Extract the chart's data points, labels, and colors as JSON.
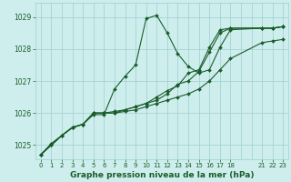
{
  "title": "Graphe pression niveau de la mer (hPa)",
  "bg_color": "#ceeeed",
  "grid_color": "#9ecece",
  "line_color": "#1a5c2a",
  "xlim": [
    -0.5,
    23.5
  ],
  "ylim": [
    1024.55,
    1029.45
  ],
  "yticks": [
    1025,
    1026,
    1027,
    1028,
    1029
  ],
  "xticks": [
    0,
    1,
    2,
    3,
    4,
    5,
    6,
    7,
    8,
    9,
    10,
    11,
    12,
    13,
    14,
    15,
    16,
    17,
    18,
    21,
    22,
    23
  ],
  "series": [
    {
      "x": [
        0,
        1,
        2,
        3,
        4,
        5,
        6,
        7,
        8,
        9,
        10,
        11,
        12,
        13,
        14,
        15,
        16,
        17,
        18,
        21,
        22,
        23
      ],
      "y": [
        1024.7,
        1025.0,
        1025.3,
        1025.55,
        1025.65,
        1025.95,
        1025.95,
        1026.75,
        1027.15,
        1027.5,
        1028.95,
        1029.05,
        1028.5,
        1027.85,
        1027.45,
        1027.25,
        1027.35,
        1028.05,
        1028.6,
        1028.65,
        1028.65,
        1028.7
      ]
    },
    {
      "x": [
        0,
        1,
        2,
        3,
        4,
        5,
        6,
        7,
        8,
        9,
        10,
        11,
        12,
        13,
        14,
        15,
        16,
        17,
        18,
        21,
        22,
        23
      ],
      "y": [
        1024.7,
        1025.0,
        1025.3,
        1025.55,
        1025.65,
        1026.0,
        1026.0,
        1026.0,
        1026.05,
        1026.1,
        1026.2,
        1026.3,
        1026.4,
        1026.5,
        1026.6,
        1026.75,
        1027.0,
        1027.35,
        1027.7,
        1028.2,
        1028.25,
        1028.3
      ]
    },
    {
      "x": [
        0,
        1,
        2,
        3,
        4,
        5,
        6,
        7,
        8,
        9,
        10,
        11,
        12,
        13,
        14,
        15,
        16,
        17,
        18,
        21,
        22,
        23
      ],
      "y": [
        1024.7,
        1025.0,
        1025.3,
        1025.55,
        1025.65,
        1026.0,
        1026.0,
        1026.0,
        1026.1,
        1026.2,
        1026.3,
        1026.4,
        1026.6,
        1026.9,
        1027.0,
        1027.3,
        1027.9,
        1028.5,
        1028.65,
        1028.65,
        1028.65,
        1028.7
      ]
    },
    {
      "x": [
        0,
        1,
        2,
        3,
        4,
        5,
        6,
        7,
        8,
        9,
        10,
        11,
        12,
        13,
        14,
        15,
        16,
        17,
        18,
        21,
        22,
        23
      ],
      "y": [
        1024.7,
        1025.05,
        1025.3,
        1025.55,
        1025.65,
        1026.0,
        1026.0,
        1026.05,
        1026.1,
        1026.2,
        1026.3,
        1026.5,
        1026.7,
        1026.85,
        1027.25,
        1027.35,
        1028.05,
        1028.6,
        1028.65,
        1028.65,
        1028.65,
        1028.7
      ]
    }
  ],
  "lw": 0.8,
  "ms": 2.0
}
